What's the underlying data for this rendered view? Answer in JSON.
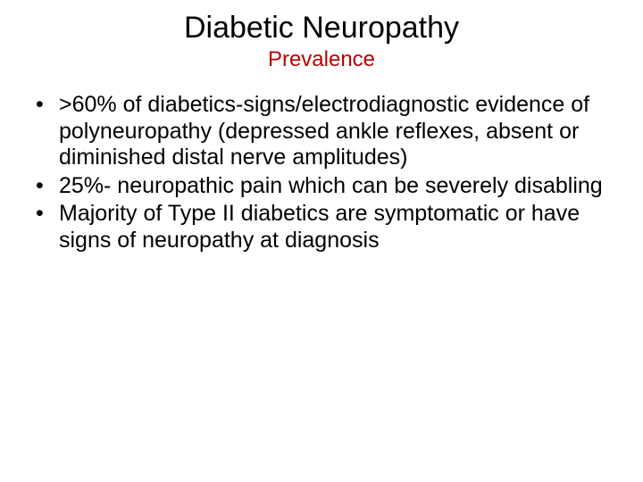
{
  "slide": {
    "title": "Diabetic Neuropathy",
    "subtitle": "Prevalence",
    "subtitle_color": "#b90000",
    "title_color": "#000000",
    "body_color": "#000000",
    "background_color": "#ffffff",
    "title_fontsize": 34,
    "subtitle_fontsize": 24,
    "body_fontsize": 25,
    "bullets": [
      ">60% of diabetics-signs/electrodiagnostic evidence of polyneuropathy (depressed ankle reflexes, absent or diminished distal nerve amplitudes)",
      "25%- neuropathic pain which can be severely disabling",
      "Majority of Type II diabetics are symptomatic or have signs of neuropathy at diagnosis"
    ]
  }
}
